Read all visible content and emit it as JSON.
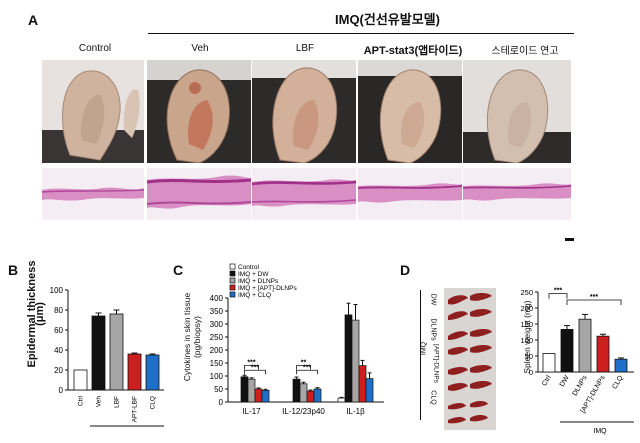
{
  "panel_a": {
    "letter": "A",
    "group_title": "IMQ(건선유발모델)",
    "labels": [
      "Control",
      "Veh",
      "LBF",
      "APT-stat3(앱타이드)",
      "스테로이드 연고"
    ]
  },
  "panel_b": {
    "letter": "B",
    "ylabel_1": "Epidermal thickness",
    "ylabel_2": "(μm)",
    "group_label": "IMQ"
  },
  "panel_c": {
    "letter": "C",
    "ylabel_1": "Cytokines in skin tissue",
    "ylabel_2": "(pg/biopsy)",
    "legend": [
      "Control",
      "IMQ + DW",
      "IMQ + DLNPs",
      "IMQ + [APT]-DLNPs",
      "IMQ + CLQ"
    ]
  },
  "panel_d": {
    "letter": "D",
    "row_labels": [
      "DW",
      "DLNPs",
      "[APT]-DLNPs",
      "CLQ"
    ],
    "side_label": "IMQ",
    "ylabel": "Spleen weight (mg)",
    "group_label": "IMQ"
  },
  "chart_data": [
    {
      "type": "bar",
      "categories": [
        "Ctrl",
        "Veh",
        "LBF",
        "APT-LBF",
        "CLQ"
      ],
      "values": [
        20,
        74,
        76,
        36,
        35
      ],
      "errors": [
        0,
        3,
        4,
        1,
        1
      ],
      "ylim": [
        0,
        100
      ],
      "yticks": [
        "0",
        "20",
        "40",
        "60",
        "80",
        "100"
      ],
      "colors": [
        "#ffffff",
        "#111111",
        "#a6a6a6",
        "#cc1f1f",
        "#1f6fc9"
      ]
    },
    {
      "type": "bar",
      "categories": [
        "IL-17",
        "IL-12/23p40",
        "IL-1β"
      ],
      "series": [
        {
          "name": "Control",
          "values": [
            0,
            0,
            15
          ],
          "color": "#ffffff"
        },
        {
          "name": "IMQ + DW",
          "values": [
            97,
            88,
            335
          ],
          "color": "#111111"
        },
        {
          "name": "IMQ + DLNPs",
          "values": [
            88,
            70,
            315
          ],
          "color": "#a6a6a6"
        },
        {
          "name": "IMQ + [APT]-DLNPs",
          "values": [
            50,
            42,
            140
          ],
          "color": "#cc1f1f"
        },
        {
          "name": "IMQ + CLQ",
          "values": [
            45,
            50,
            90
          ],
          "color": "#1f6fc9"
        }
      ],
      "errors": [
        [
          0,
          0,
          3
        ],
        [
          6,
          8,
          45
        ],
        [
          5,
          6,
          60
        ],
        [
          4,
          4,
          20
        ],
        [
          4,
          5,
          22
        ]
      ],
      "ylim": [
        0,
        400
      ],
      "yticks": [
        "0",
        "50",
        "100",
        "150",
        "200",
        "250",
        "300",
        "350",
        "400"
      ],
      "annotations": [
        "***",
        "***",
        "**",
        "***"
      ]
    },
    {
      "type": "bar",
      "categories": [
        "Ctrl",
        "DW",
        "DLNPs",
        "[APT]-DLNPs",
        "CLQ"
      ],
      "values": [
        58,
        133,
        165,
        112,
        40
      ],
      "errors": [
        0,
        12,
        15,
        6,
        4
      ],
      "ylim": [
        0,
        250
      ],
      "yticks": [
        "0",
        "50",
        "100",
        "150",
        "200",
        "250"
      ],
      "colors": [
        "#ffffff",
        "#111111",
        "#a6a6a6",
        "#cc1f1f",
        "#1f6fc9"
      ],
      "annotations": [
        "***",
        "***"
      ]
    }
  ]
}
